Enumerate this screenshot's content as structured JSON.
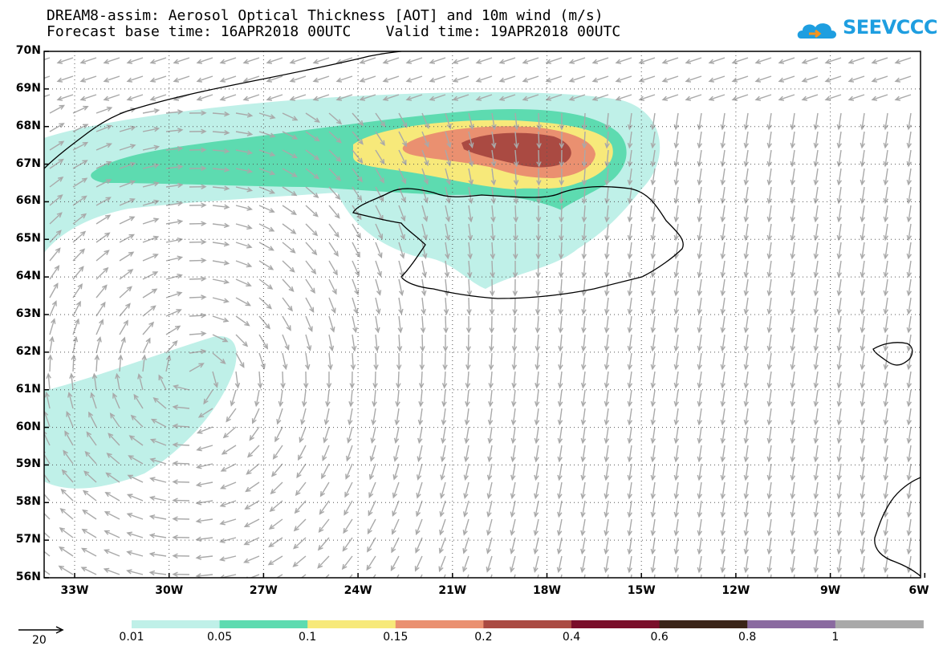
{
  "header": {
    "title_line1": "DREAM8-assim: Aerosol Optical Thickness [AOT] and 10m wind (m/s)",
    "title_line2": "Forecast base time: 16APR2018 00UTC    Valid time: 19APR2018 00UTC",
    "logo_text": "SEEVCCC"
  },
  "map": {
    "lat_labels": [
      "70N",
      "69N",
      "68N",
      "67N",
      "66N",
      "65N",
      "64N",
      "63N",
      "62N",
      "61N",
      "60N",
      "59N",
      "58N",
      "57N",
      "56N"
    ],
    "lon_labels": [
      "33W",
      "30W",
      "27W",
      "24W",
      "21W",
      "18W",
      "15W",
      "12W",
      "9W",
      "6W"
    ],
    "colors": {
      "land_outline": "#000000",
      "wind_arrow": "#a9a9a9",
      "grid": "#555555"
    }
  },
  "legend": {
    "reference_vector_label": "20",
    "levels": [
      "0.01",
      "0.05",
      "0.1",
      "0.15",
      "0.2",
      "0.4",
      "0.6",
      "0.8",
      "1"
    ],
    "colors": [
      "#bff0e8",
      "#5ddbb0",
      "#f7e97a",
      "#ea9070",
      "#aa4a42",
      "#7a0e2a",
      "#3a2418",
      "#8a6aa0",
      "#a9a9a9"
    ]
  }
}
